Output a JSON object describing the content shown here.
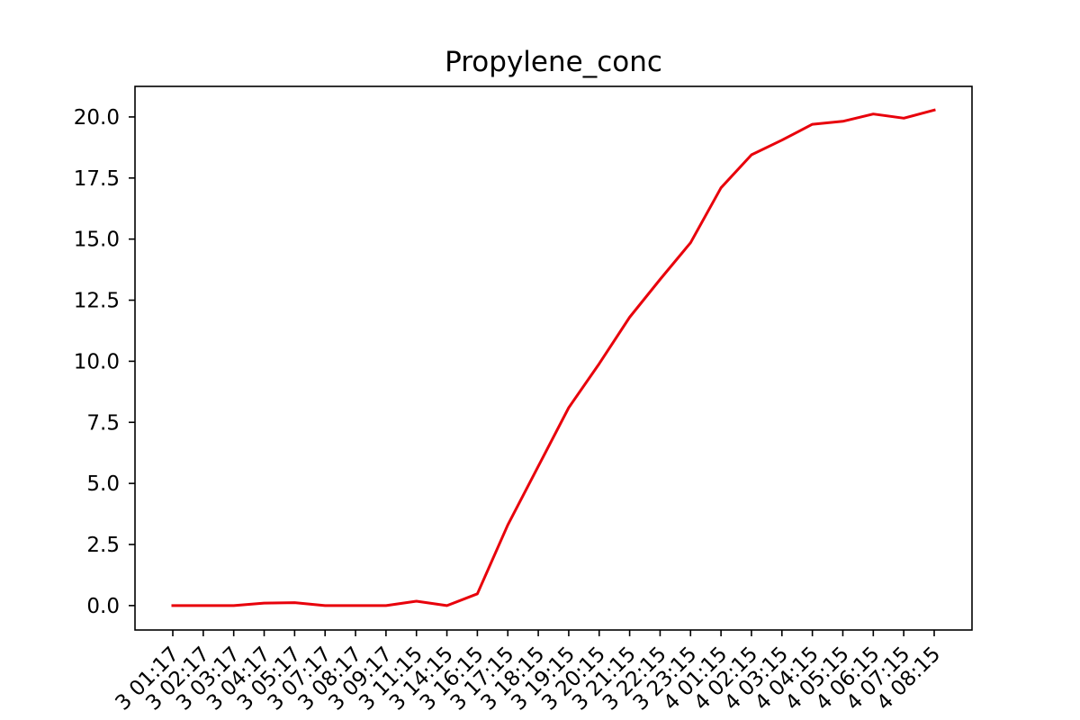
{
  "chart_data": {
    "type": "line",
    "title": "Propylene_conc",
    "xlabel": "",
    "ylabel": "",
    "ylim": [
      -1.0,
      21.25
    ],
    "yticks": [
      0.0,
      2.5,
      5.0,
      7.5,
      10.0,
      12.5,
      15.0,
      17.5,
      20.0
    ],
    "ytick_labels": [
      "0.0",
      "2.5",
      "5.0",
      "7.5",
      "10.0",
      "12.5",
      "15.0",
      "17.5",
      "20.0"
    ],
    "x_tick_labels": [
      "3 01:17",
      "3 02:17",
      "3 03:17",
      "3 04:17",
      "3 05:17",
      "3 07:17",
      "3 08:17",
      "3 09:17",
      "3 11:15",
      "3 14:15",
      "3 16:15",
      "3 17:15",
      "3 18:15",
      "3 19:15",
      "3 20:15",
      "3 21:15",
      "3 22:15",
      "3 23:15",
      "4 01:15",
      "4 02:15",
      "4 03:15",
      "4 04:15",
      "4 05:15",
      "4 06:15",
      "4 07:15",
      "4 08:15"
    ],
    "series": [
      {
        "color": "#e8000b",
        "values": [
          0.0,
          0.0,
          0.0,
          0.1,
          0.12,
          0.0,
          0.0,
          0.0,
          0.18,
          0.0,
          0.48,
          3.3,
          5.7,
          8.1,
          9.9,
          11.8,
          13.35,
          14.85,
          17.1,
          18.45,
          19.05,
          19.7,
          19.82,
          20.12,
          19.95,
          20.28
        ]
      }
    ],
    "grid": false,
    "legend": "none"
  }
}
